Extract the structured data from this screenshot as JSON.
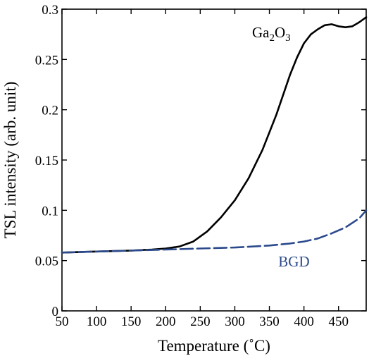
{
  "chart_data": {
    "type": "line",
    "xlabel": "Temperature (˚C)",
    "ylabel": "TSL intensity (arb. unit)",
    "xlim": [
      50,
      490
    ],
    "ylim": [
      0,
      0.3
    ],
    "xticks": [
      50,
      100,
      150,
      200,
      250,
      300,
      350,
      400,
      450
    ],
    "xtick_labels": [
      "50",
      "100",
      "150",
      "200",
      "250",
      "300",
      "350",
      "400",
      "450"
    ],
    "yticks": [
      0,
      0.05,
      0.1,
      0.15,
      0.2,
      0.25,
      0.3
    ],
    "ytick_labels": [
      "0",
      "0.05",
      "0.1",
      "0.15",
      "0.2",
      "0.25",
      "0.3"
    ],
    "grid": false,
    "series": [
      {
        "name": "Ga2O3",
        "color": "#000000",
        "dash": "solid",
        "x": [
          50,
          100,
          150,
          180,
          200,
          220,
          240,
          260,
          280,
          300,
          320,
          340,
          360,
          380,
          390,
          400,
          410,
          420,
          430,
          440,
          450,
          460,
          470,
          480,
          490
        ],
        "y": [
          0.058,
          0.059,
          0.06,
          0.061,
          0.062,
          0.064,
          0.069,
          0.079,
          0.093,
          0.11,
          0.132,
          0.16,
          0.195,
          0.235,
          0.252,
          0.266,
          0.275,
          0.28,
          0.284,
          0.285,
          0.283,
          0.282,
          0.283,
          0.287,
          0.292
        ]
      },
      {
        "name": "BGD",
        "color": "#2b4a8c",
        "dash": "dashed",
        "x": [
          50,
          100,
          150,
          200,
          250,
          300,
          350,
          380,
          400,
          420,
          440,
          460,
          480,
          490
        ],
        "y": [
          0.058,
          0.059,
          0.06,
          0.061,
          0.062,
          0.063,
          0.065,
          0.067,
          0.069,
          0.072,
          0.077,
          0.083,
          0.092,
          0.1
        ]
      }
    ],
    "annotations": [
      {
        "text_main": "Ga",
        "sub1": "2",
        "mid": "O",
        "sub2": "3",
        "x": 325,
        "y": 0.272
      },
      {
        "text": "BGD",
        "x": 363,
        "y": 0.044,
        "color": "#2b4a8c"
      }
    ]
  }
}
